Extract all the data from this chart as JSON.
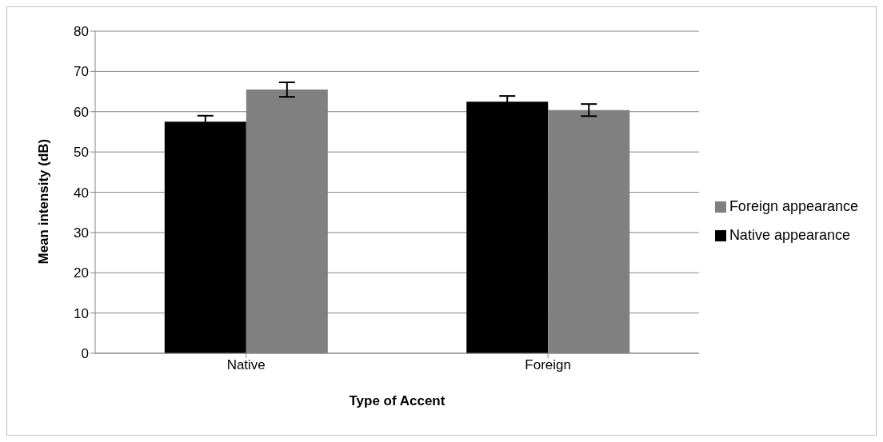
{
  "chart_data": {
    "type": "bar",
    "xlabel": "Type of Accent",
    "ylabel": "Mean intensity (dB)",
    "categories": [
      "Native",
      "Foreign"
    ],
    "series": [
      {
        "name": "Native appearance",
        "color": "#000000",
        "values": [
          57.5,
          62.5
        ],
        "errors": [
          1.5,
          1.4
        ]
      },
      {
        "name": "Foreign appearance",
        "color": "#808080",
        "values": [
          65.5,
          60.4
        ],
        "errors": [
          1.8,
          1.5
        ]
      }
    ],
    "ylim": [
      0,
      80
    ],
    "yticks": [
      0,
      10,
      20,
      30,
      40,
      50,
      60,
      70,
      80
    ],
    "grid": "y",
    "legend": "right"
  }
}
